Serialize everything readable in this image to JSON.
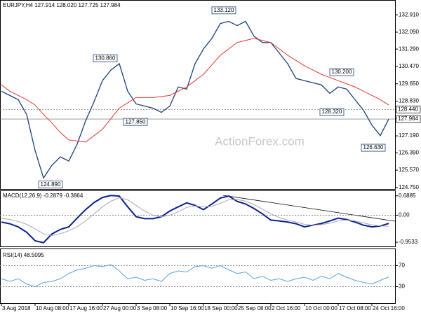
{
  "chart_data": [
    {
      "type": "line",
      "title": "EURJPY,H4 127.914 128.020 127.725 127.984",
      "watermark": "ActionForex.com",
      "ylim": [
        124.68,
        133.61
      ],
      "yticks": [
        {
          "value": 132.91,
          "label": "132.910"
        },
        {
          "value": 132.09,
          "label": "132.090"
        },
        {
          "value": 131.29,
          "label": "131.290"
        },
        {
          "value": 130.47,
          "label": "130.470"
        },
        {
          "value": 129.65,
          "label": "129.650"
        },
        {
          "value": 128.83,
          "label": "128.830"
        },
        {
          "value": 128.01,
          "label": "128.010"
        },
        {
          "value": 127.19,
          "label": "127.190"
        },
        {
          "value": 126.39,
          "label": "126.390"
        },
        {
          "value": 125.57,
          "label": "125.570"
        },
        {
          "value": 124.75,
          "label": "124.750"
        }
      ],
      "grid": false,
      "series": [
        {
          "color": "#1b3f7a",
          "values": [
            129.3,
            129.1,
            128.9,
            128.2,
            126.5,
            125.2,
            125.8,
            126.2,
            126.0,
            126.8,
            127.9,
            128.8,
            129.8,
            130.3,
            130.6,
            129.3,
            128.7,
            128.6,
            128.5,
            128.3,
            128.6,
            129.5,
            129.4,
            130.6,
            131.3,
            131.8,
            132.5,
            132.6,
            132.4,
            132.6,
            131.9,
            131.6,
            131.6,
            131.1,
            130.6,
            129.9,
            129.8,
            129.7,
            129.6,
            129.2,
            129.5,
            129.4,
            128.9,
            128.4,
            127.7,
            127.2,
            127.984
          ]
        },
        {
          "color": "#e03a2f",
          "values": [
            129.6,
            129.3,
            129.1,
            128.9,
            128.65,
            128.2,
            127.8,
            127.35,
            127.0,
            126.95,
            126.9,
            127.2,
            127.5,
            128.0,
            128.5,
            128.75,
            129.0,
            129.0,
            129.0,
            129.05,
            129.1,
            129.3,
            129.5,
            129.8,
            130.1,
            130.55,
            131.0,
            131.3,
            131.6,
            131.7,
            131.8,
            131.7,
            131.6,
            131.3,
            131.0,
            130.75,
            130.5,
            130.3,
            130.1,
            129.95,
            129.8,
            129.65,
            129.5,
            129.3,
            129.1,
            128.9,
            128.65
          ]
        }
      ],
      "annotations": [
        {
          "value": 133.12,
          "label": "133.120"
        },
        {
          "value": 130.86,
          "label": "130.860"
        },
        {
          "value": 127.85,
          "label": "127.850"
        },
        {
          "value": 124.89,
          "label": "124.890"
        },
        {
          "value": 128.32,
          "label": "128.320"
        },
        {
          "value": 130.2,
          "label": "130.200"
        },
        {
          "value": 126.63,
          "label": "126.630"
        }
      ],
      "hlines": [
        {
          "value": 128.44,
          "label": "128.440"
        },
        {
          "value": 127.984,
          "label": "127.984"
        }
      ]
    },
    {
      "type": "line",
      "title": "MACD(12,26,9) -0.2879 -0.3864",
      "ylim": [
        -1.1,
        0.88
      ],
      "yticks": [
        0.6885,
        {
          "value": 0,
          "label": "0.00"
        },
        -0.9533
      ],
      "grid": false,
      "series": [
        {
          "color": "#0a1f8f",
          "values": [
            -0.24,
            -0.3,
            -0.41,
            -0.6,
            -0.9,
            -0.97,
            -0.66,
            -0.5,
            -0.41,
            -0.1,
            0.2,
            0.45,
            0.63,
            0.7,
            0.68,
            0.3,
            -0.05,
            -0.12,
            -0.12,
            -0.05,
            0.15,
            0.3,
            0.44,
            0.35,
            0.2,
            0.4,
            0.61,
            0.68,
            0.49,
            0.4,
            0.24,
            0.05,
            -0.17,
            -0.2,
            -0.24,
            -0.3,
            -0.41,
            -0.35,
            -0.29,
            -0.2,
            -0.1,
            -0.15,
            -0.24,
            -0.35,
            -0.41,
            -0.38,
            -0.2879
          ]
        },
        {
          "color": "#a8a8a8",
          "values": [
            -0.1,
            -0.15,
            -0.22,
            -0.32,
            -0.48,
            -0.65,
            -0.72,
            -0.65,
            -0.55,
            -0.4,
            -0.2,
            0.05,
            0.3,
            0.5,
            0.62,
            0.55,
            0.35,
            0.15,
            0.0,
            -0.05,
            0.0,
            0.12,
            0.28,
            0.33,
            0.3,
            0.32,
            0.42,
            0.55,
            0.56,
            0.5,
            0.38,
            0.22,
            0.05,
            -0.08,
            -0.17,
            -0.24,
            -0.32,
            -0.35,
            -0.33,
            -0.28,
            -0.2,
            -0.17,
            -0.2,
            -0.27,
            -0.34,
            -0.38,
            -0.3864
          ]
        }
      ]
    },
    {
      "type": "line",
      "title": "RSI(14) 48.5095",
      "ylim": [
        0,
        100
      ],
      "yticks": [
        70,
        30
      ],
      "grid": true,
      "categories": [
        "3 Aug 2018",
        null,
        null,
        null,
        "10 Aug 08:00",
        null,
        null,
        null,
        "17 Aug 16:00",
        null,
        null,
        null,
        "27 Aug 00:00",
        null,
        null,
        null,
        "3 Sep 08:00",
        null,
        null,
        null,
        "10 Sep 16:00",
        null,
        null,
        null,
        "18 Sep 00:00",
        null,
        null,
        null,
        "25 Sep 08:00",
        null,
        null,
        null,
        "2 Oct 16:00",
        null,
        null,
        null,
        "10 Oct 00:00",
        null,
        null,
        null,
        "17 Oct 08:00",
        null,
        null,
        null,
        "24 Oct 16:00",
        null,
        null
      ],
      "series": [
        {
          "color": "#5aa0e0",
          "values": [
            45,
            40,
            45,
            35,
            30,
            38,
            40,
            45,
            55,
            62,
            65,
            70,
            68,
            72,
            60,
            45,
            48,
            42,
            45,
            40,
            55,
            60,
            58,
            68,
            70,
            65,
            70,
            62,
            55,
            58,
            45,
            50,
            42,
            45,
            40,
            45,
            48,
            42,
            50,
            45,
            55,
            48,
            42,
            38,
            35,
            42,
            48.5095
          ]
        }
      ]
    }
  ]
}
